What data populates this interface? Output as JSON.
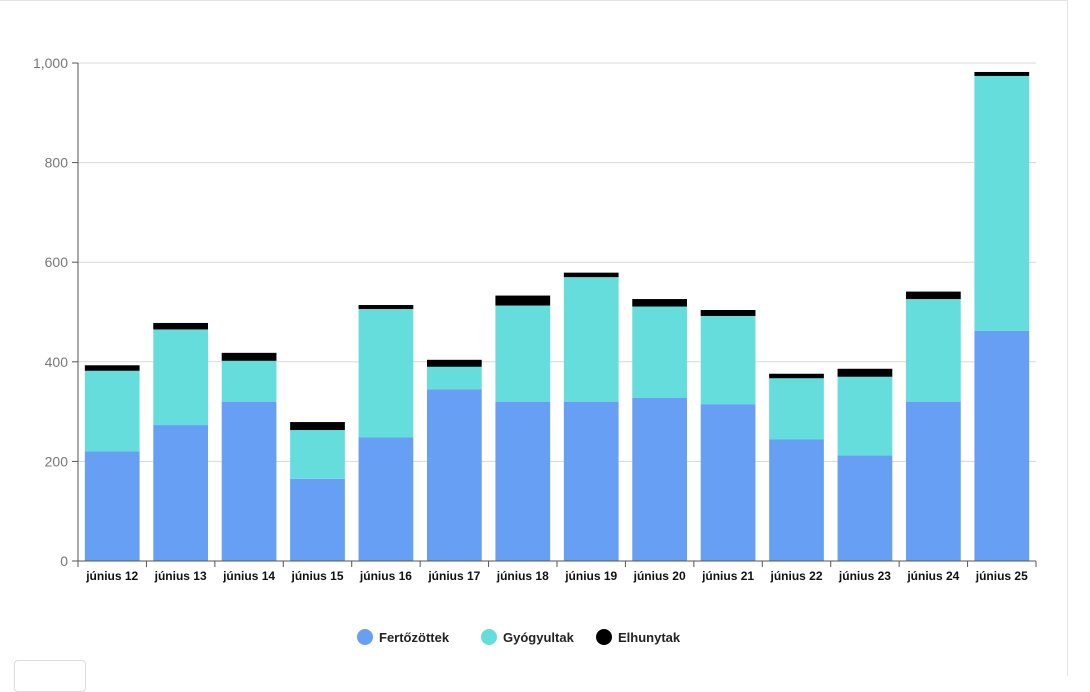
{
  "chart_data": {
    "type": "bar",
    "stacked": true,
    "categories": [
      "június 12",
      "június 13",
      "június 14",
      "június 15",
      "június 16",
      "június 17",
      "június 18",
      "június 19",
      "június 20",
      "június 21",
      "június 22",
      "június 23",
      "június 24",
      "június 25"
    ],
    "series": [
      {
        "name": "Fertőzöttek",
        "color": "#679ff5",
        "values": [
          220,
          273,
          320,
          165,
          248,
          345,
          320,
          320,
          328,
          315,
          244,
          212,
          320,
          462
        ]
      },
      {
        "name": "Gyógyultak",
        "color": "#66dddd",
        "values": [
          162,
          192,
          82,
          98,
          258,
          45,
          193,
          250,
          183,
          177,
          123,
          158,
          206,
          512
        ]
      },
      {
        "name": "Elhunytak",
        "color": "#000000",
        "values": [
          11,
          13,
          16,
          16,
          8,
          14,
          20,
          9,
          15,
          12,
          9,
          16,
          15,
          8
        ]
      }
    ],
    "yticks": [
      "0",
      "200",
      "400",
      "600",
      "800",
      "1,000"
    ],
    "ylim": [
      0,
      1000
    ],
    "grid": true,
    "legend_position": "bottom"
  }
}
